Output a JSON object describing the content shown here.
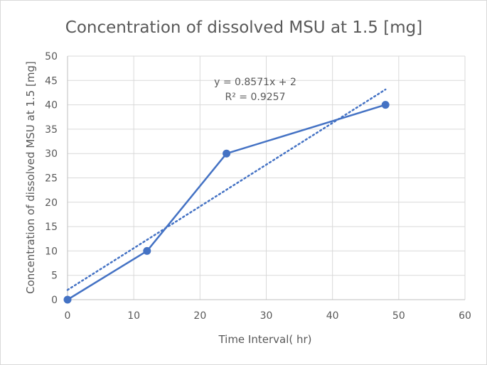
{
  "chart_data": {
    "type": "scatter",
    "title": "Concentration of dissolved MSU at 1.5 [mg]",
    "xlabel": "Time Interval( hr)",
    "ylabel": "Concentration of dissolved MSU at 1.5 [mg]",
    "xlim": [
      0,
      60
    ],
    "ylim": [
      0,
      50
    ],
    "xticks": [
      0,
      10,
      20,
      30,
      40,
      50,
      60
    ],
    "yticks": [
      0,
      5,
      10,
      15,
      20,
      25,
      30,
      35,
      40,
      45,
      50
    ],
    "grid": true,
    "legend": "none",
    "series": [
      {
        "x": [
          0,
          12,
          24,
          48
        ],
        "y": [
          0,
          10,
          30,
          40
        ],
        "color": "#4472c4",
        "style": "line-with-markers"
      }
    ],
    "trendline": {
      "type": "linear",
      "slope": 0.8571,
      "intercept": 2,
      "x_range": [
        0,
        48
      ],
      "color": "#4472c4",
      "style": "dotted",
      "equation": "y = 0.8571x + 2",
      "r_squared": "R² = 0.9257"
    }
  }
}
